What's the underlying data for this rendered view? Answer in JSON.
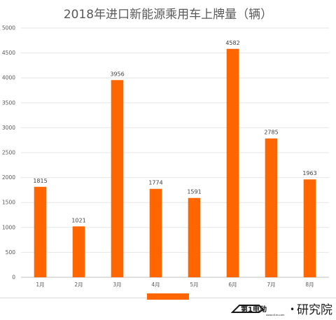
{
  "chart_data": {
    "type": "bar",
    "title": "2018年进口新能源乘用车上牌量（辆）",
    "categories": [
      "1月",
      "2月",
      "3月",
      "4月",
      "5月",
      "6月",
      "7月",
      "8月"
    ],
    "values": [
      1815,
      1021,
      3956,
      1774,
      1591,
      4582,
      2785,
      1963
    ],
    "value_labels": [
      "1815",
      "1021",
      "3956",
      "1774",
      "1591",
      "4582",
      "2785",
      "1963"
    ],
    "ylim": [
      0,
      5000
    ],
    "yticks": [
      "0",
      "500",
      "1000",
      "1500",
      "2000",
      "2500",
      "3000",
      "3500",
      "4000",
      "4500",
      "5000"
    ],
    "xlabel": "",
    "ylabel": "",
    "grid": true,
    "legend": "bottom",
    "colors": {
      "bar": "#FF6600",
      "grid": "#e6e6e6",
      "text": "#595959"
    }
  },
  "footer": {
    "logo_mark": "第1电动",
    "logo_url": "www.d1ev.com",
    "logo_dot": "•",
    "logo_text": "研究院"
  }
}
